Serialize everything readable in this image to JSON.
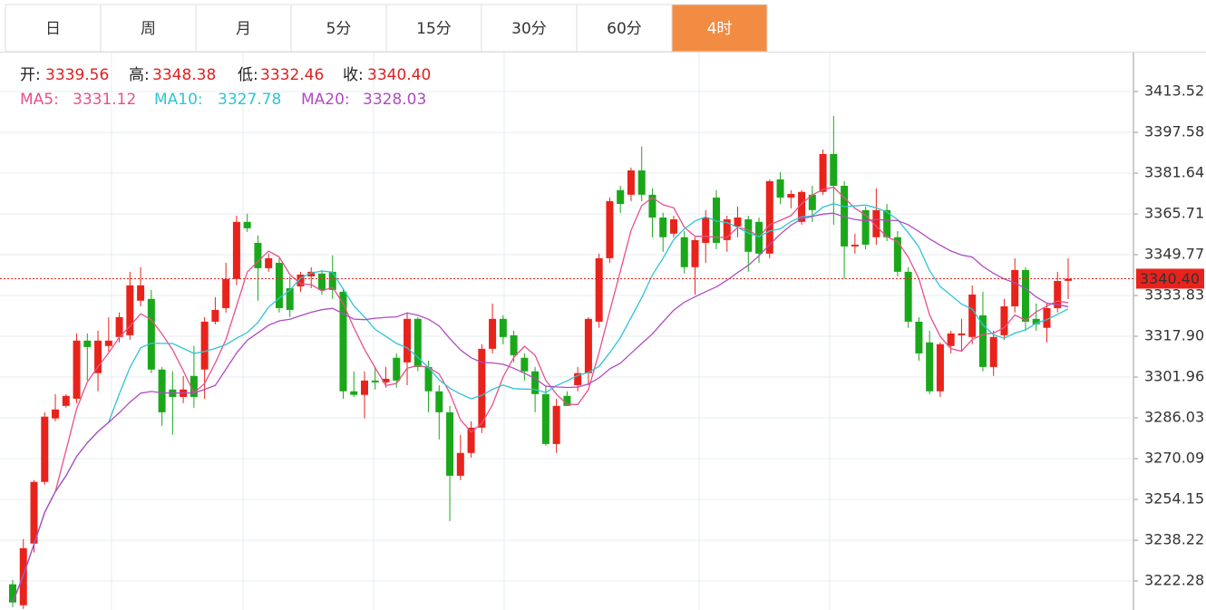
{
  "tabs": [
    "日",
    "周",
    "月",
    "5分",
    "15分",
    "30分",
    "60分",
    "4时"
  ],
  "active_tab": 7,
  "chart_data": {
    "type": "candlestick",
    "up_color": "#e8231c",
    "down_color": "#1aa81a",
    "open": [
      3221.0,
      3212.8,
      3236.9,
      3261.0,
      3285.8,
      3290.7,
      3293.5,
      3316.2,
      3303.5,
      3314.1,
      3317.6,
      3318.3,
      3331.8,
      3332.5,
      3304.9,
      3297.1,
      3294.2,
      3302.4,
      3304.9,
      3323.6,
      3328.9,
      3340.3,
      3362.6,
      3354.4,
      3344.5,
      3346.6,
      3336.7,
      3337.4,
      3341.3,
      3342.4,
      3343.1,
      3335.3,
      3296.4,
      3295.0,
      3300.6,
      3299.9,
      3309.5,
      3307.7,
      3324.7,
      3305.9,
      3296.4,
      3288.2,
      3263.4,
      3272.3,
      3282.2,
      3313.0,
      3324.7,
      3318.3,
      3309.5,
      3304.2,
      3295.3,
      3275.8,
      3294.6,
      3298.8,
      3303.5,
      3323.6,
      3348.4,
      3375.0,
      3373.2,
      3382.7,
      3373.2,
      3364.3,
      3358.0,
      3356.6,
      3344.9,
      3354.4,
      3372.1,
      3355.5,
      3360.8,
      3363.6,
      3362.6,
      3350.2,
      3379.2,
      3372.1,
      3362.6,
      3373.2,
      3374.3,
      3389.1,
      3376.7,
      3353.0,
      3367.2,
      3356.6,
      3367.2,
      3356.6,
      3343.1,
      3323.6,
      3315.5,
      3296.4,
      3314.1,
      3318.3,
      3317.6,
      3326.1,
      3305.9,
      3318.3,
      3329.6,
      3343.8,
      3324.7,
      3321.2,
      3328.9,
      3339.56
    ],
    "high": [
      3222.7,
      3238.7,
      3261.7,
      3288.2,
      3295.3,
      3295.3,
      3319.0,
      3319.0,
      3320.1,
      3325.4,
      3327.2,
      3343.1,
      3344.9,
      3336.0,
      3305.9,
      3304.2,
      3302.4,
      3314.1,
      3325.4,
      3333.2,
      3346.6,
      3365.0,
      3365.8,
      3357.3,
      3350.2,
      3348.4,
      3341.3,
      3343.1,
      3344.9,
      3343.8,
      3349.5,
      3336.7,
      3304.2,
      3304.2,
      3305.9,
      3305.9,
      3311.2,
      3327.2,
      3325.4,
      3308.4,
      3298.8,
      3290.7,
      3279.4,
      3284.7,
      3314.8,
      3330.7,
      3326.1,
      3320.1,
      3311.2,
      3305.9,
      3298.8,
      3293.5,
      3296.4,
      3305.9,
      3325.4,
      3350.2,
      3372.1,
      3376.7,
      3383.8,
      3392.0,
      3375.7,
      3366.1,
      3365.0,
      3359.0,
      3356.6,
      3367.2,
      3375.0,
      3365.0,
      3368.6,
      3365.0,
      3364.3,
      3379.2,
      3382.0,
      3375.0,
      3375.0,
      3376.7,
      3390.9,
      3404.0,
      3378.5,
      3358.0,
      3368.6,
      3375.7,
      3369.6,
      3359.0,
      3344.9,
      3325.4,
      3320.1,
      3315.5,
      3320.1,
      3324.7,
      3337.8,
      3335.3,
      3320.1,
      3332.5,
      3348.4,
      3344.9,
      3330.7,
      3330.7,
      3343.1,
      3348.38
    ],
    "low": [
      3212.1,
      3211.4,
      3233.4,
      3259.9,
      3284.7,
      3290.0,
      3291.8,
      3300.6,
      3296.4,
      3311.9,
      3315.5,
      3316.5,
      3329.6,
      3303.5,
      3282.9,
      3279.4,
      3291.8,
      3290.0,
      3293.5,
      3322.6,
      3327.2,
      3337.8,
      3358.7,
      3331.8,
      3343.1,
      3327.2,
      3325.4,
      3335.3,
      3336.7,
      3334.2,
      3332.5,
      3293.5,
      3294.2,
      3285.8,
      3297.1,
      3297.8,
      3297.8,
      3298.8,
      3304.2,
      3288.2,
      3277.6,
      3245.7,
      3261.7,
      3270.5,
      3280.1,
      3311.2,
      3314.8,
      3307.7,
      3300.6,
      3288.2,
      3275.1,
      3272.3,
      3290.7,
      3296.4,
      3298.8,
      3321.2,
      3346.6,
      3366.1,
      3370.7,
      3370.7,
      3356.6,
      3350.9,
      3356.6,
      3342.4,
      3334.2,
      3346.6,
      3351.9,
      3350.9,
      3356.6,
      3343.1,
      3346.6,
      3348.4,
      3369.6,
      3367.9,
      3361.5,
      3362.6,
      3373.2,
      3361.5,
      3340.3,
      3350.2,
      3351.9,
      3353.7,
      3355.1,
      3341.3,
      3321.2,
      3308.4,
      3295.3,
      3294.2,
      3311.2,
      3311.9,
      3314.8,
      3304.2,
      3302.4,
      3316.5,
      3327.2,
      3320.1,
      3320.1,
      3315.5,
      3327.2,
      3332.46
    ],
    "close": [
      3213.9,
      3235.1,
      3261.0,
      3286.5,
      3289.3,
      3294.6,
      3316.2,
      3313.7,
      3316.2,
      3316.2,
      3325.4,
      3337.8,
      3337.8,
      3304.9,
      3288.2,
      3294.2,
      3297.1,
      3294.2,
      3323.6,
      3328.2,
      3340.3,
      3362.6,
      3360.1,
      3344.5,
      3348.4,
      3328.9,
      3328.2,
      3342.0,
      3343.1,
      3336.0,
      3336.0,
      3296.4,
      3295.0,
      3300.6,
      3299.9,
      3301.3,
      3300.6,
      3324.7,
      3305.9,
      3296.4,
      3288.2,
      3263.4,
      3272.3,
      3282.2,
      3313.0,
      3324.7,
      3317.6,
      3310.5,
      3304.2,
      3295.3,
      3275.8,
      3290.7,
      3290.7,
      3303.5,
      3324.7,
      3348.4,
      3370.7,
      3369.6,
      3382.7,
      3373.2,
      3364.3,
      3356.6,
      3363.6,
      3344.9,
      3355.5,
      3364.3,
      3354.4,
      3363.6,
      3364.3,
      3350.9,
      3350.2,
      3378.5,
      3372.1,
      3373.5,
      3374.3,
      3367.2,
      3389.1,
      3376.7,
      3353.0,
      3353.7,
      3353.7,
      3367.2,
      3356.6,
      3343.1,
      3323.6,
      3311.2,
      3296.4,
      3314.8,
      3319.0,
      3319.0,
      3334.2,
      3305.9,
      3317.6,
      3329.6,
      3343.8,
      3323.6,
      3322.6,
      3328.9,
      3339.5,
      3340.4
    ],
    "ylim": [
      3210.95,
      3428.75
    ],
    "yticks": [
      3413.52,
      3397.58,
      3381.64,
      3365.71,
      3349.77,
      3333.83,
      {
        "value": 3317.9,
        "label": "3317.90"
      },
      3301.96,
      3286.03,
      3270.09,
      3254.15,
      3238.22,
      3222.28
    ],
    "grid": true,
    "last_price": {
      "value": 3340.4,
      "label": "3340.40"
    },
    "ohlc_legend": [
      {
        "name": "开:",
        "value": "3339.56"
      },
      {
        "name": "高:",
        "value": "3348.38"
      },
      {
        "name": "低:",
        "value": "3332.46"
      },
      {
        "name": "收:",
        "value": "3340.40"
      }
    ],
    "ma": [
      {
        "name": "MA5:",
        "color": "#e8508a",
        "value": "3331.12"
      },
      {
        "name": "MA10:",
        "color": "#2fc4d6",
        "value": "3327.78"
      },
      {
        "name": "MA20:",
        "color": "#b04bc0",
        "value": "3328.03"
      }
    ]
  }
}
